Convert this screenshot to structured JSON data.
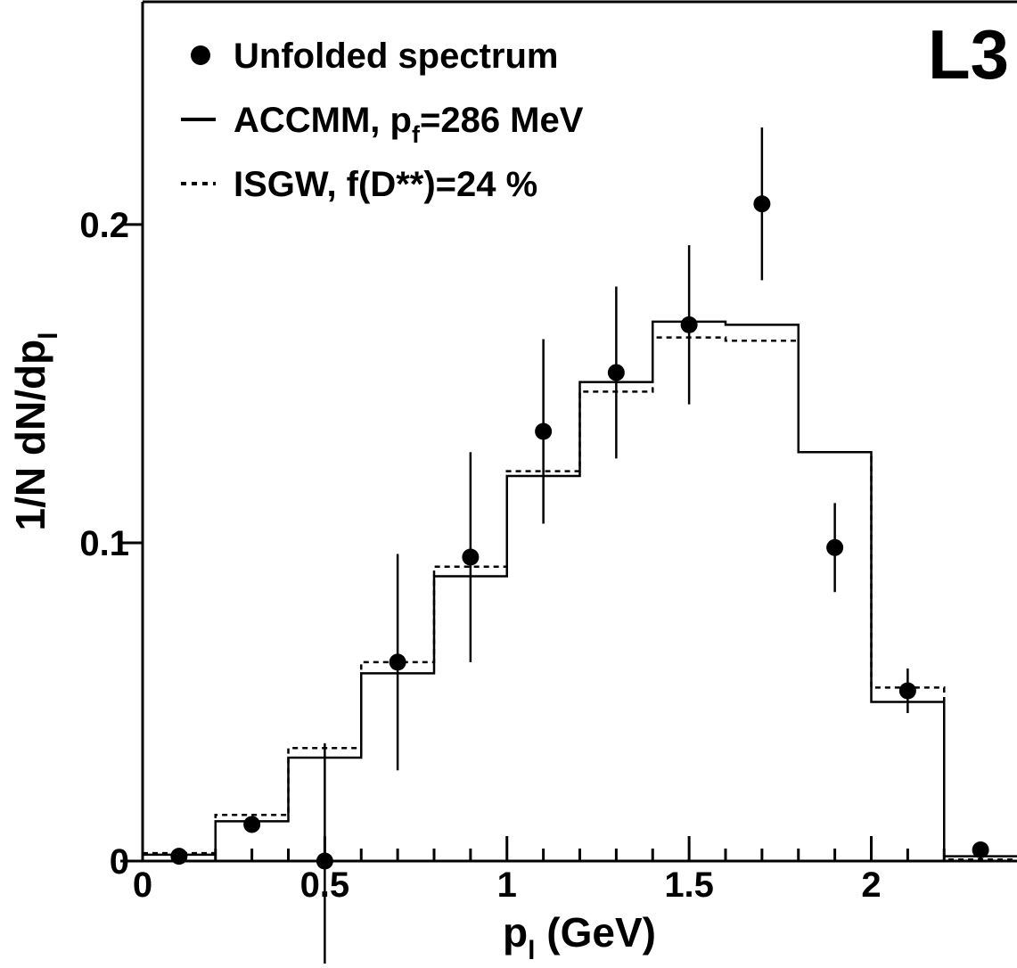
{
  "chart_data": {
    "type": "histogram",
    "experiment_label": "L3",
    "xlabel": {
      "main": "p",
      "sub": "l",
      "rest": " (GeV)"
    },
    "ylabel": {
      "main": "1/N dN/dp",
      "sub": "l"
    },
    "xlim": [
      0,
      2.4
    ],
    "ylim": [
      0,
      0.27
    ],
    "x_ticks": [
      {
        "value": 0,
        "label": "0"
      },
      {
        "value": 0.5,
        "label": "0.5"
      },
      {
        "value": 1,
        "label": "1"
      },
      {
        "value": 1.5,
        "label": "1.5"
      },
      {
        "value": 2,
        "label": "2"
      }
    ],
    "y_ticks": [
      {
        "value": 0,
        "label": "0"
      },
      {
        "value": 0.1,
        "label": "0.1"
      },
      {
        "value": 0.2,
        "label": "0.2"
      }
    ],
    "legend": {
      "position": "top-left",
      "entries": [
        {
          "marker": "point",
          "parts": [
            {
              "text": "Unfolded spectrum"
            }
          ]
        },
        {
          "marker": "solid-line",
          "parts": [
            {
              "text": "ACCMM, p"
            },
            {
              "text": "f",
              "sub": true
            },
            {
              "text": "=286 MeV"
            }
          ]
        },
        {
          "marker": "dashed-line",
          "parts": [
            {
              "text": "ISGW, f(D**)=24 %"
            }
          ]
        }
      ]
    },
    "bin_edges": [
      0,
      0.2,
      0.4,
      0.6,
      0.8,
      1.0,
      1.2,
      1.4,
      1.6,
      1.8,
      2.0,
      2.2,
      2.4
    ],
    "series": [
      {
        "name": "Unfolded spectrum",
        "kind": "points",
        "x": [
          0.1,
          0.3,
          0.5,
          0.7,
          0.9,
          1.1,
          1.3,
          1.5,
          1.7,
          1.9,
          2.1,
          2.3
        ],
        "y": [
          0.0015,
          0.0115,
          0.0,
          0.0625,
          0.0955,
          0.135,
          0.1535,
          0.1685,
          0.2065,
          0.0985,
          0.0535,
          0.0035
        ],
        "yerr_low": [
          0,
          0,
          0.037,
          0.034,
          0.033,
          0.029,
          0.027,
          0.025,
          0.024,
          0.014,
          0.007,
          0
        ],
        "yerr_high": [
          0,
          0,
          0.037,
          0.034,
          0.033,
          0.029,
          0.027,
          0.025,
          0.024,
          0.014,
          0.007,
          0
        ]
      },
      {
        "name": "ACCMM, p_f=286 MeV",
        "kind": "step-solid",
        "values": [
          0.002,
          0.0125,
          0.0325,
          0.059,
          0.0895,
          0.121,
          0.1505,
          0.1695,
          0.1685,
          0.1285,
          0.05,
          0.0015
        ]
      },
      {
        "name": "ISGW, f(D**)=24 %",
        "kind": "step-dashed",
        "values": [
          0.0025,
          0.0145,
          0.0355,
          0.0625,
          0.0925,
          0.1225,
          0.1475,
          0.1645,
          0.1635,
          0.1285,
          0.0545,
          0.0005
        ]
      }
    ]
  }
}
